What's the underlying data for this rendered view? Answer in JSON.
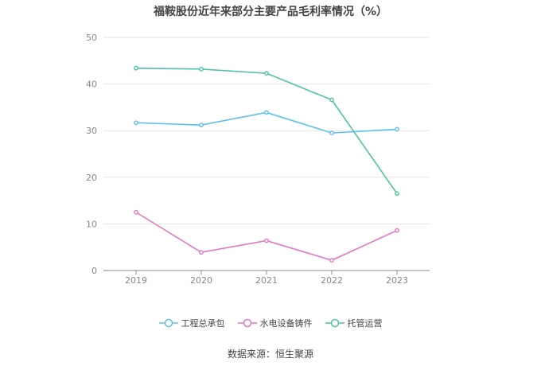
{
  "chart_data": {
    "type": "line",
    "title": "福鞍股份近年来部分主要产品毛利率情况（%）",
    "x": [
      "2019",
      "2020",
      "2021",
      "2022",
      "2023"
    ],
    "ylim": [
      0,
      50
    ],
    "yticks": [
      "0",
      "10",
      "20",
      "30",
      "40",
      "50"
    ],
    "grid": true,
    "legend_position": "bottom",
    "series": [
      {
        "name": "工程总承包",
        "color": "#5bc0eb",
        "values": [
          31.7,
          31.2,
          33.9,
          29.5,
          30.3
        ]
      },
      {
        "name": "水电设备铸件",
        "color": "#e377c2",
        "values": [
          12.5,
          3.9,
          6.4,
          2.2,
          8.6
        ]
      },
      {
        "name": "托管运营",
        "color": "#4fc1a6",
        "values": [
          43.4,
          43.2,
          42.3,
          36.6,
          16.5
        ]
      }
    ]
  },
  "source": "数据来源：恒生聚源"
}
